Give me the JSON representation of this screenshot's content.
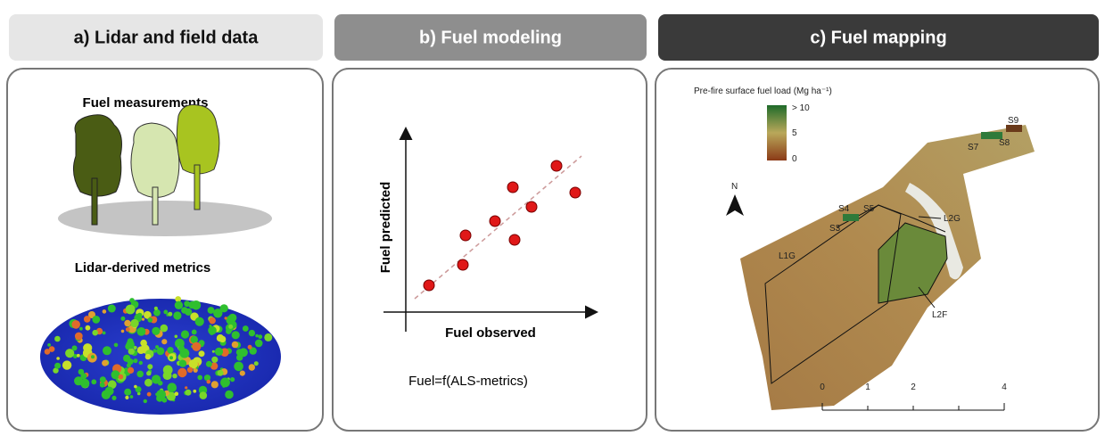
{
  "panels": [
    {
      "header": "a) Lidar and field data",
      "labels": [
        "Fuel measurements",
        "Lidar-derived metrics"
      ]
    },
    {
      "header": "b) Fuel modeling",
      "y_label": "Fuel predicted",
      "x_label": "Fuel observed",
      "formula": "Fuel=f(ALS-metrics)"
    },
    {
      "header": "c) Fuel mapping",
      "legend_title": "Pre-fire surface fuel load (Mg ha⁻¹)",
      "legend_labels": [
        "> 10",
        "5",
        "0"
      ],
      "north": "N",
      "sites": [
        "S9",
        "S7",
        "S8",
        "S4",
        "S5",
        "S3"
      ],
      "units": [
        "L2G",
        "L1G",
        "L2F"
      ],
      "scale_labels": [
        "0",
        "1",
        "2",
        "4"
      ]
    }
  ]
}
